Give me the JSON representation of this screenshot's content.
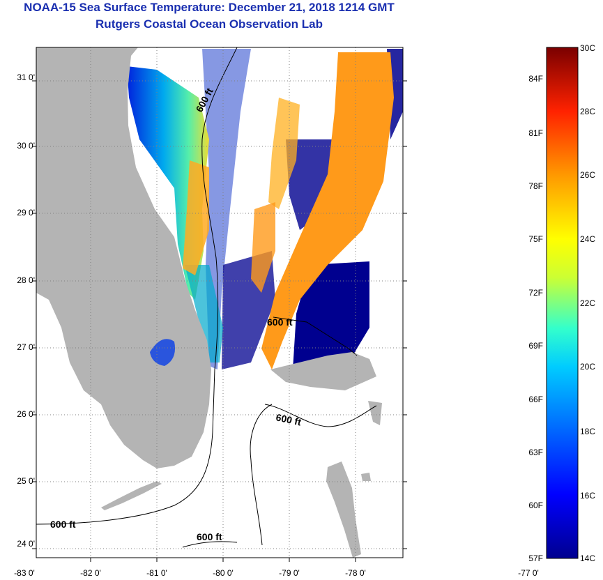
{
  "title": {
    "line1": "NOAA-15 Sea Surface Temperature:  December 21, 2018 1214 GMT",
    "line2": "Rutgers Coastal Ocean Observation Lab"
  },
  "colors": {
    "title": "#1a2fb0",
    "land": "#b4b4b4",
    "cold": "#00008f",
    "warm": "#ff9a1a"
  },
  "map": {
    "lat_labels": [
      "31 0'",
      "30 0'",
      "29 0'",
      "28 0'",
      "27 0'",
      "26 0'",
      "25 0'",
      "24 0'"
    ],
    "lon_labels": [
      "-83 0'",
      "-82 0'",
      "-81 0'",
      "-80 0'",
      "-79 0'",
      "-78 0'",
      "-77 0'"
    ],
    "contour_labels": [
      "600 ft",
      "600 ft",
      "600 ft",
      "600 ft",
      "600 ft"
    ]
  },
  "colorbar": {
    "fahrenheit": [
      "84F",
      "81F",
      "78F",
      "75F",
      "72F",
      "69F",
      "66F",
      "63F",
      "60F",
      "57F"
    ],
    "celsius": [
      "30C",
      "28C",
      "26C",
      "24C",
      "22C",
      "20C",
      "18C",
      "16C",
      "14C"
    ]
  }
}
